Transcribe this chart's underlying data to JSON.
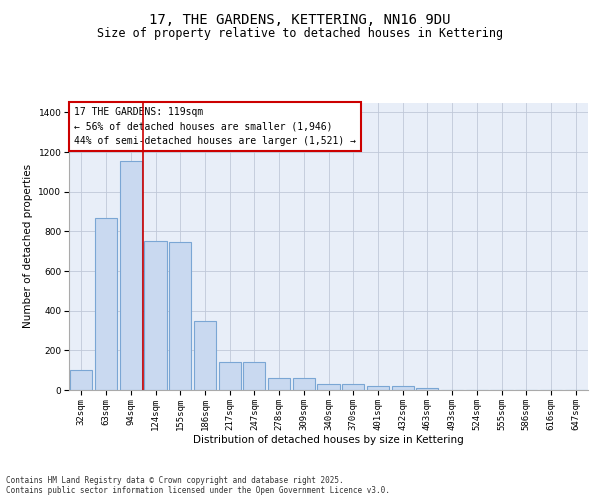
{
  "title": "17, THE GARDENS, KETTERING, NN16 9DU",
  "subtitle": "Size of property relative to detached houses in Kettering",
  "xlabel": "Distribution of detached houses by size in Kettering",
  "ylabel": "Number of detached properties",
  "categories": [
    "32sqm",
    "63sqm",
    "94sqm",
    "124sqm",
    "155sqm",
    "186sqm",
    "217sqm",
    "247sqm",
    "278sqm",
    "309sqm",
    "340sqm",
    "370sqm",
    "401sqm",
    "432sqm",
    "463sqm",
    "493sqm",
    "524sqm",
    "555sqm",
    "586sqm",
    "616sqm",
    "647sqm"
  ],
  "values": [
    103,
    868,
    1155,
    750,
    745,
    350,
    140,
    140,
    60,
    60,
    28,
    28,
    18,
    18,
    10,
    0,
    0,
    0,
    0,
    0,
    0
  ],
  "bar_color": "#c9d9f0",
  "bar_edge_color": "#7aa6d4",
  "bar_edge_width": 0.8,
  "grid_color": "#c0c8d8",
  "bg_color": "#e8eef8",
  "red_line_x": 2.5,
  "annotation_text": "17 THE GARDENS: 119sqm\n← 56% of detached houses are smaller (1,946)\n44% of semi-detached houses are larger (1,521) →",
  "annotation_box_color": "#ffffff",
  "annotation_box_edge": "#cc0000",
  "red_line_color": "#cc0000",
  "footnote": "Contains HM Land Registry data © Crown copyright and database right 2025.\nContains public sector information licensed under the Open Government Licence v3.0.",
  "ylim": [
    0,
    1450
  ],
  "title_fontsize": 10,
  "subtitle_fontsize": 8.5,
  "axis_label_fontsize": 7.5,
  "tick_fontsize": 6.5,
  "annotation_fontsize": 7,
  "footnote_fontsize": 5.5
}
